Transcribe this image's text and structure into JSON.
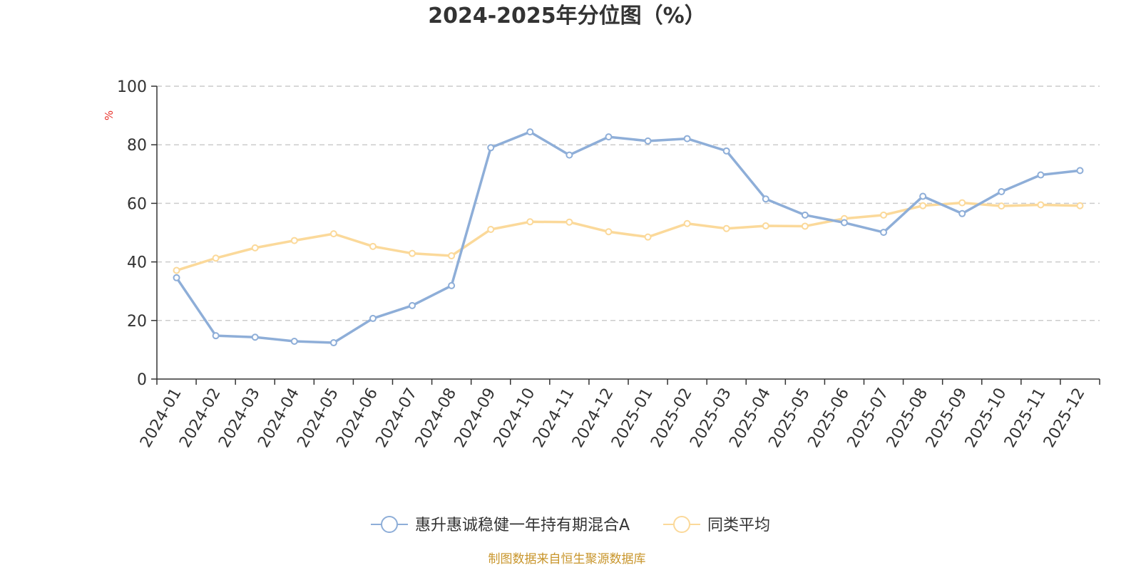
{
  "chart_data": {
    "type": "line",
    "title": "2024-2025年分位图（%）",
    "ylabel": "%",
    "xlabel": "",
    "ylim": [
      0,
      100
    ],
    "yticks": [
      0,
      20,
      40,
      60,
      80,
      100
    ],
    "grid": true,
    "legend_position": "bottom-center",
    "categories": [
      "2024-01",
      "2024-02",
      "2024-03",
      "2024-04",
      "2024-05",
      "2024-06",
      "2024-07",
      "2024-08",
      "2024-09",
      "2024-10",
      "2024-11",
      "2024-12",
      "2025-01",
      "2025-02",
      "2025-03",
      "2025-04",
      "2025-05",
      "2025-06",
      "2025-07",
      "2025-08",
      "2025-09",
      "2025-10",
      "2025-11",
      "2025-12"
    ],
    "series": [
      {
        "name": "惠升惠诚稳健一年持有期混合A",
        "color": "#8eaed8",
        "values": [
          34.6,
          14.8,
          14.3,
          12.9,
          12.4,
          20.7,
          25.1,
          31.9,
          79.0,
          84.4,
          76.5,
          82.7,
          81.3,
          82.1,
          77.9,
          61.5,
          56.0,
          53.4,
          50.1,
          62.4,
          56.5,
          64.0,
          69.7,
          71.2
        ]
      },
      {
        "name": "同类平均",
        "color": "#fbd99a",
        "values": [
          37.1,
          41.3,
          44.8,
          47.3,
          49.6,
          45.3,
          42.9,
          42.1,
          51.1,
          53.7,
          53.6,
          50.3,
          48.5,
          53.1,
          51.4,
          52.3,
          52.2,
          54.8,
          56.0,
          59.2,
          60.2,
          59.1,
          59.5,
          59.2
        ]
      }
    ]
  },
  "colors": {
    "axis": "#333333",
    "grid": "#cccccc",
    "unit": "#e8312a",
    "source": "#c8952b"
  },
  "source_note": "制图数据来自恒生聚源数据库"
}
